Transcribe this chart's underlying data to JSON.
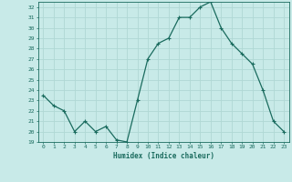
{
  "x": [
    0,
    1,
    2,
    3,
    4,
    5,
    6,
    7,
    8,
    9,
    10,
    11,
    12,
    13,
    14,
    15,
    16,
    17,
    18,
    19,
    20,
    21,
    22,
    23
  ],
  "y": [
    23.5,
    22.5,
    22.0,
    20.0,
    21.0,
    20.0,
    20.5,
    19.2,
    19.0,
    23.0,
    27.0,
    28.5,
    29.0,
    31.0,
    31.0,
    32.0,
    32.5,
    30.0,
    28.5,
    27.5,
    26.5,
    24.0,
    21.0,
    20.0
  ],
  "xlabel": "Humidex (Indice chaleur)",
  "xlim": [
    -0.5,
    23.5
  ],
  "ylim": [
    19,
    32.5
  ],
  "yticks": [
    19,
    20,
    21,
    22,
    23,
    24,
    25,
    26,
    27,
    28,
    29,
    30,
    31,
    32
  ],
  "xticks": [
    0,
    1,
    2,
    3,
    4,
    5,
    6,
    7,
    8,
    9,
    10,
    11,
    12,
    13,
    14,
    15,
    16,
    17,
    18,
    19,
    20,
    21,
    22,
    23
  ],
  "line_color": "#1a6b5e",
  "marker_color": "#1a6b5e",
  "bg_color": "#c8eae8",
  "grid_color": "#b0d8d4",
  "label_color": "#1a6b5e",
  "tick_color": "#1a6b5e"
}
